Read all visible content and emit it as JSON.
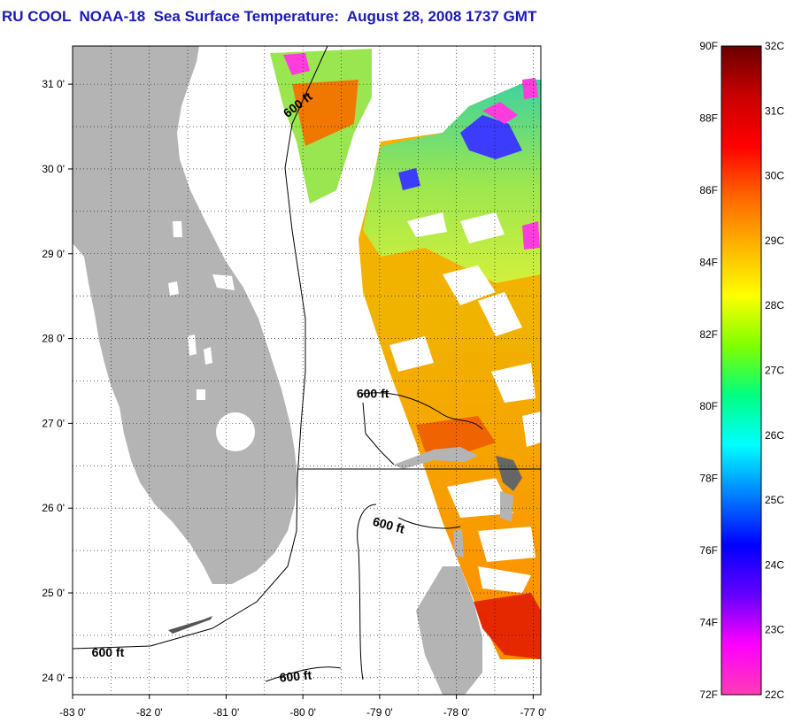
{
  "title": "RU COOL  NOAA-18  Sea Surface Temperature:  August 28, 2008 1737 GMT",
  "map": {
    "x_range": [
      -83,
      -76.9
    ],
    "y_range": [
      23.8,
      31.45
    ],
    "x_ticks": [
      {
        "value": -83,
        "label": "-83 0'"
      },
      {
        "value": -82,
        "label": "-82 0'"
      },
      {
        "value": -81,
        "label": "-81 0'"
      },
      {
        "value": -80,
        "label": "-80 0'"
      },
      {
        "value": -79,
        "label": "-79 0'"
      },
      {
        "value": -78,
        "label": "-78 0'"
      },
      {
        "value": -77,
        "label": "-77 0'"
      }
    ],
    "y_ticks": [
      {
        "value": 24,
        "label": "24 0'"
      },
      {
        "value": 25,
        "label": "25 0'"
      },
      {
        "value": 26,
        "label": "26 0'"
      },
      {
        "value": 27,
        "label": "27 0'"
      },
      {
        "value": 28,
        "label": "28 0'"
      },
      {
        "value": 29,
        "label": "29 0'"
      },
      {
        "value": 30,
        "label": "30 0'"
      },
      {
        "value": 31,
        "label": "31 0'"
      }
    ],
    "grid": "dotted",
    "land_color": "#b4b4b4",
    "cloud_color": "#ffffff",
    "contour_labels": [
      {
        "text": "600 ft",
        "lon": -80.2,
        "lat": 30.6,
        "rotate": -38
      },
      {
        "text": "600 ft",
        "lon": -79.3,
        "lat": 27.3,
        "rotate": 0
      },
      {
        "text": "600 ft",
        "lon": -79.1,
        "lat": 25.8,
        "rotate": 15
      },
      {
        "text": "600 ft",
        "lon": -82.75,
        "lat": 24.25,
        "rotate": 0
      },
      {
        "text": "600 ft",
        "lon": -80.3,
        "lat": 23.95,
        "rotate": -5
      }
    ]
  },
  "colorbar": {
    "fahrenheit_labels": [
      "90F",
      "88F",
      "86F",
      "84F",
      "82F",
      "80F",
      "78F",
      "76F",
      "74F",
      "72F"
    ],
    "celsius_labels": [
      "32C",
      "31C",
      "30C",
      "29C",
      "28C",
      "27C",
      "26C",
      "25C",
      "24C",
      "23C",
      "22C"
    ],
    "stops": [
      "#6b0000",
      "#c80000",
      "#ff0000",
      "#ff6400",
      "#ffb400",
      "#ffff00",
      "#80ff00",
      "#00ff80",
      "#00ffff",
      "#0080ff",
      "#0000ff",
      "#6400ff",
      "#ff00ff",
      "#ff3cb4"
    ]
  }
}
